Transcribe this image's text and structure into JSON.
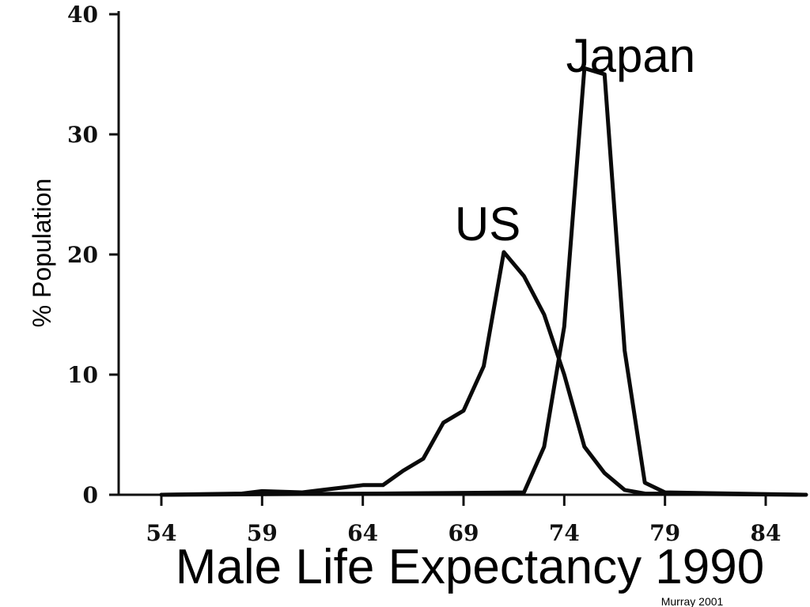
{
  "chart_data": {
    "type": "line",
    "title": "Male Life Expectancy 1990",
    "xlabel": "",
    "ylabel": "% Population",
    "source": "Murray 2001",
    "xlim": [
      52,
      86
    ],
    "ylim": [
      0,
      40
    ],
    "x_ticks": [
      "54",
      "59",
      "64",
      "69",
      "74",
      "79",
      "84"
    ],
    "y_ticks": [
      "0",
      "10",
      "20",
      "30",
      "40"
    ],
    "grid": false,
    "series": [
      {
        "name": "US",
        "points": [
          [
            54,
            0
          ],
          [
            58,
            0.1
          ],
          [
            59,
            0.3
          ],
          [
            61,
            0.2
          ],
          [
            62,
            0.4
          ],
          [
            63,
            0.6
          ],
          [
            64,
            0.8
          ],
          [
            65,
            0.8
          ],
          [
            66,
            2.0
          ],
          [
            67,
            3.0
          ],
          [
            68,
            6.0
          ],
          [
            68.5,
            6.5
          ],
          [
            69,
            7.0
          ],
          [
            70,
            10.7
          ],
          [
            71,
            20.2
          ],
          [
            72,
            18.2
          ],
          [
            73,
            15.0
          ],
          [
            74,
            10.0
          ],
          [
            75,
            4.0
          ],
          [
            76,
            1.8
          ],
          [
            77,
            0.4
          ],
          [
            78,
            0.1
          ],
          [
            86,
            0
          ]
        ]
      },
      {
        "name": "Japan",
        "points": [
          [
            54,
            0
          ],
          [
            65,
            0.1
          ],
          [
            72,
            0.2
          ],
          [
            73,
            4.0
          ],
          [
            74,
            14.0
          ],
          [
            75,
            35.5
          ],
          [
            76,
            35.0
          ],
          [
            77,
            12.0
          ],
          [
            78,
            1.0
          ],
          [
            79,
            0.2
          ],
          [
            86,
            0
          ]
        ]
      }
    ],
    "annotations": [
      {
        "text": "Japan",
        "x": 77.3,
        "y": 36.5
      },
      {
        "text": "US",
        "x": 70.2,
        "y": 22.5
      }
    ]
  }
}
